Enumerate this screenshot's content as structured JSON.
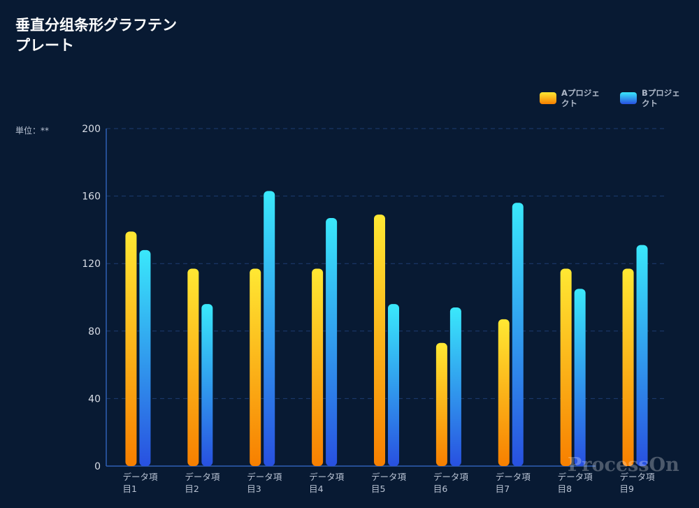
{
  "title": "垂直分组条形グラフテンプレート",
  "unit_label": "単位：**",
  "watermark": "ProcessOn",
  "colors": {
    "background": "#081a33",
    "axis": "#2f5fb5",
    "grid": "#1d3c72",
    "series_a_top": "#ffe833",
    "series_a_bottom": "#f77f00",
    "series_b_top": "#3ae8fb",
    "series_b_bottom": "#2850e0",
    "tick_text": "#d8dde6"
  },
  "chart_data": {
    "type": "bar",
    "title": "垂直分组条形グラフテンプレート",
    "ylabel": "単位：**",
    "categories": [
      "データ項目1",
      "データ項目2",
      "データ項目3",
      "データ項目4",
      "データ項目5",
      "データ項目6",
      "データ項目7",
      "データ項目8",
      "データ項目9"
    ],
    "category_lines": [
      [
        "データ項",
        "目1"
      ],
      [
        "データ項",
        "目2"
      ],
      [
        "データ項",
        "目3"
      ],
      [
        "データ項",
        "目4"
      ],
      [
        "データ項",
        "目5"
      ],
      [
        "データ項",
        "目6"
      ],
      [
        "データ項",
        "目7"
      ],
      [
        "データ項",
        "目8"
      ],
      [
        "データ項",
        "目9"
      ]
    ],
    "series": [
      {
        "name": "Aプロジェクト",
        "name_lines": [
          "Aプロジェ",
          "クト"
        ],
        "values": [
          139,
          117,
          117,
          117,
          149,
          73,
          87,
          117,
          117
        ]
      },
      {
        "name": "Bプロジェクト",
        "name_lines": [
          "Bプロジェ",
          "クト"
        ],
        "values": [
          128,
          96,
          163,
          147,
          96,
          94,
          156,
          105,
          131
        ]
      }
    ],
    "ylim": [
      0,
      200
    ],
    "yticks": [
      0,
      40,
      80,
      120,
      160,
      200
    ],
    "grid": true,
    "legend_position": "top-right"
  }
}
